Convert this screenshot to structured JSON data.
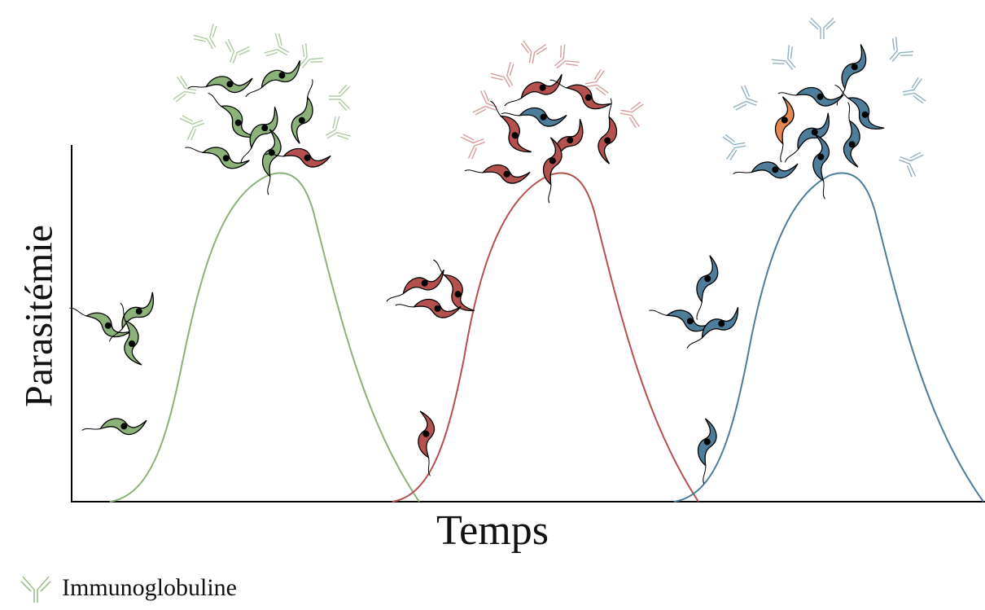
{
  "figure": {
    "axis_x_label": "Temps",
    "axis_y_label": "Parasitémie",
    "legend": {
      "label": "Immunoglobuline",
      "icon": "antibody-icon"
    },
    "waves": [
      {
        "id": "wave-1",
        "color": "#8cb27a",
        "dominant_variant": "green"
      },
      {
        "id": "wave-2",
        "color": "#b4514e",
        "dominant_variant": "red"
      },
      {
        "id": "wave-3",
        "color": "#4d7d99",
        "dominant_variant": "blue"
      }
    ],
    "variant_colors": {
      "green": "#8cb27a",
      "red": "#b4514e",
      "blue": "#4d7d99",
      "orange": "#e8874f"
    }
  }
}
